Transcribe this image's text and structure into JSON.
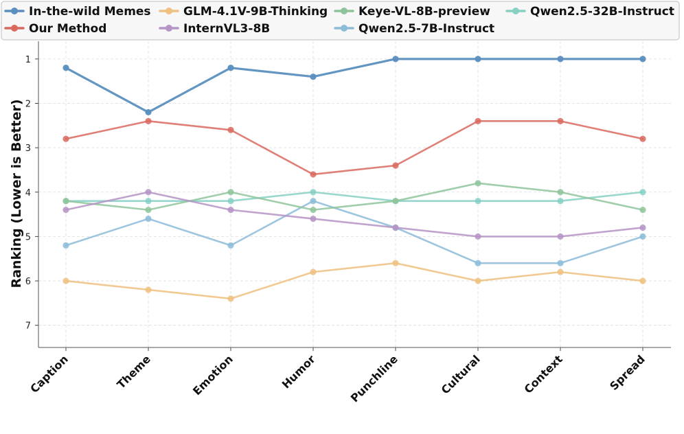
{
  "chart_data": {
    "type": "line",
    "title": "",
    "xlabel": "",
    "ylabel": "Ranking (Lower is Better)",
    "ylim": [
      7.5,
      0.6
    ],
    "y_inverted": true,
    "yticks": [
      "1",
      "2",
      "3",
      "4",
      "5",
      "6",
      "7"
    ],
    "grid": true,
    "legend_position": "top",
    "categories": [
      "Caption",
      "Theme",
      "Emotion",
      "Humor",
      "Punchline",
      "Cultural",
      "Context",
      "Spread"
    ],
    "series": [
      {
        "name": "In-the-wild Memes",
        "color": "#5b8fc0",
        "values": [
          1.2,
          2.2,
          1.2,
          1.4,
          1.0,
          1.0,
          1.0,
          1.0
        ]
      },
      {
        "name": "Our Method",
        "color": "#d9695f",
        "values": [
          2.8,
          2.4,
          2.6,
          3.6,
          3.4,
          2.4,
          2.4,
          2.8
        ]
      },
      {
        "name": "GLM-4.1V-9B-Thinking",
        "color": "#efc180",
        "values": [
          6.0,
          6.2,
          6.4,
          5.8,
          5.6,
          6.0,
          5.8,
          6.0
        ]
      },
      {
        "name": "InternVL3-8B",
        "color": "#b594c6",
        "values": [
          4.4,
          4.0,
          4.4,
          4.6,
          4.8,
          5.0,
          5.0,
          4.8
        ]
      },
      {
        "name": "Keye-VL-8B-preview",
        "color": "#8fc49b",
        "values": [
          4.2,
          4.4,
          4.0,
          4.4,
          4.2,
          3.8,
          4.0,
          4.4
        ]
      },
      {
        "name": "Qwen2.5-7B-Instruct",
        "color": "#8cbcd8",
        "values": [
          5.2,
          4.6,
          5.2,
          4.2,
          4.8,
          5.6,
          5.6,
          5.0
        ]
      },
      {
        "name": "Qwen2.5-32B-Instruct",
        "color": "#86d0c4",
        "values": [
          4.2,
          4.2,
          4.2,
          4.0,
          4.2,
          4.2,
          4.2,
          4.0
        ]
      }
    ]
  }
}
